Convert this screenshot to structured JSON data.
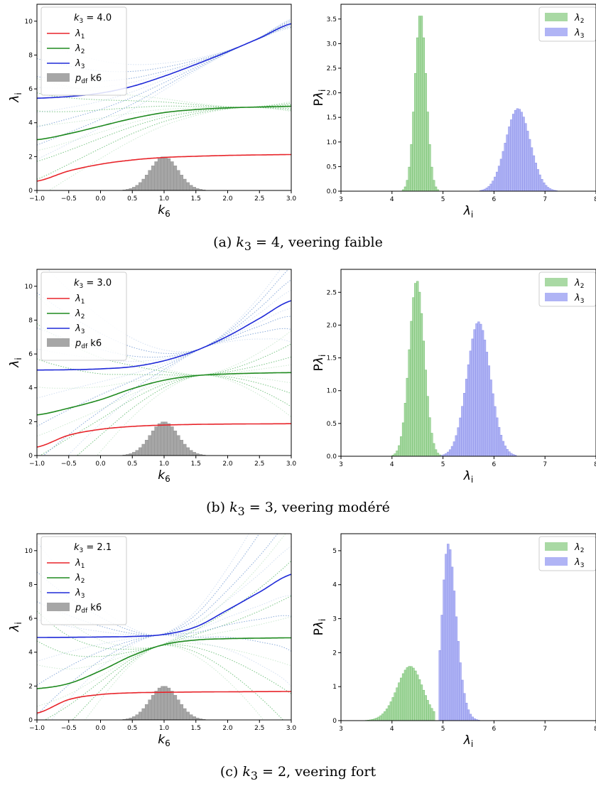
{
  "captions": [
    {
      "prefix": "(a) ",
      "math": "k",
      "sub": "3",
      "eq": " = 4",
      "rest": ", veering faible"
    },
    {
      "prefix": "(b) ",
      "math": "k",
      "sub": "3",
      "eq": " = 3",
      "rest": ", veering modéré"
    },
    {
      "prefix": "(c) ",
      "math": "k",
      "sub": "3",
      "eq": " = 2",
      "rest": ", veering fort"
    }
  ],
  "colors": {
    "lambda1": "#e8242a",
    "lambda2": "#1f8a1f",
    "lambda3": "#1f2ad8",
    "hist_green_fill": "#a9d9a4",
    "hist_green_edge": "#6fbf6a",
    "hist_blue_fill": "#b0b4f5",
    "hist_blue_edge": "#8a8fe8",
    "pdf_gray": "#a6a6a6",
    "samples_blue": "#7fa3d6",
    "samples_green": "#6cbf78"
  },
  "chart_data": [
    {
      "panel": "a-left",
      "type": "line",
      "xlabel": "k6",
      "ylabel": "λi",
      "xlim": [
        -1.0,
        3.0
      ],
      "ylim": [
        0,
        11
      ],
      "xticks": [
        "−1.0",
        "−0.5",
        "0.0",
        "0.5",
        "1.0",
        "1.5",
        "2.0",
        "2.5",
        "3.0"
      ],
      "yticks": [
        "0",
        "2",
        "4",
        "6",
        "8",
        "10"
      ],
      "legend_title": "k3 = 4.0",
      "legend": [
        "λ1",
        "λ2",
        "λ3",
        "pdf k6"
      ],
      "legend_position": "top-left",
      "series": [
        {
          "name": "λ1",
          "x": [
            -1.0,
            -0.5,
            0.0,
            0.5,
            1.0,
            1.5,
            2.0,
            2.5,
            3.0
          ],
          "values": [
            0.55,
            1.15,
            1.55,
            1.8,
            1.95,
            2.02,
            2.07,
            2.1,
            2.12
          ]
        },
        {
          "name": "λ2",
          "x": [
            -1.0,
            -0.5,
            0.0,
            0.5,
            1.0,
            1.5,
            2.0,
            2.5,
            3.0
          ],
          "values": [
            3.0,
            3.35,
            3.8,
            4.25,
            4.6,
            4.78,
            4.88,
            4.93,
            4.97
          ]
        },
        {
          "name": "λ3",
          "x": [
            -1.0,
            -0.5,
            0.0,
            0.5,
            1.0,
            1.5,
            2.0,
            2.5,
            3.0
          ],
          "values": [
            5.45,
            5.55,
            5.75,
            6.15,
            6.75,
            7.45,
            8.2,
            9.0,
            9.85
          ]
        }
      ],
      "pdf": {
        "center": 1.0,
        "sigma": 0.22,
        "peak": 2.0
      }
    },
    {
      "panel": "a-right",
      "type": "histogram",
      "xlabel": "λi",
      "ylabel": "Pλi",
      "xlim": [
        3,
        8
      ],
      "ylim": [
        0,
        3.8
      ],
      "xticks": [
        "3",
        "4",
        "5",
        "6",
        "7",
        "8"
      ],
      "yticks": [
        "0.0",
        "0.5",
        "1.0",
        "1.5",
        "2.0",
        "2.5",
        "3.0",
        "3.5"
      ],
      "legend": [
        "λ2",
        "λ3"
      ],
      "legend_position": "top-right",
      "series": [
        {
          "name": "λ2",
          "center": 4.56,
          "sigma": 0.11,
          "peak": 3.62,
          "skew": 0
        },
        {
          "name": "λ3",
          "center": 6.45,
          "sigma": 0.24,
          "peak": 1.68,
          "skew": 0.1
        }
      ]
    },
    {
      "panel": "b-left",
      "type": "line",
      "xlabel": "k6",
      "ylabel": "λi",
      "xlim": [
        -1.0,
        3.0
      ],
      "ylim": [
        0,
        11
      ],
      "xticks": [
        "−1.0",
        "−0.5",
        "0.0",
        "0.5",
        "1.0",
        "1.5",
        "2.0",
        "2.5",
        "3.0"
      ],
      "yticks": [
        "0",
        "2",
        "4",
        "6",
        "8",
        "10"
      ],
      "legend_title": "k3 = 3.0",
      "legend": [
        "λ1",
        "λ2",
        "λ3",
        "pdf k6"
      ],
      "legend_position": "top-left",
      "series": [
        {
          "name": "λ1",
          "x": [
            -1.0,
            -0.5,
            0.0,
            0.5,
            1.0,
            1.5,
            2.0,
            2.5,
            3.0
          ],
          "values": [
            0.5,
            1.2,
            1.55,
            1.72,
            1.8,
            1.84,
            1.86,
            1.87,
            1.88
          ]
        },
        {
          "name": "λ2",
          "x": [
            -1.0,
            -0.5,
            0.0,
            0.5,
            1.0,
            1.5,
            2.0,
            2.5,
            3.0
          ],
          "values": [
            2.4,
            2.8,
            3.3,
            3.95,
            4.45,
            4.72,
            4.82,
            4.87,
            4.9
          ]
        },
        {
          "name": "λ3",
          "x": [
            -1.0,
            -0.5,
            0.0,
            0.5,
            1.0,
            1.5,
            2.0,
            2.5,
            3.0
          ],
          "values": [
            5.05,
            5.07,
            5.12,
            5.25,
            5.6,
            6.2,
            7.05,
            8.1,
            9.15
          ]
        }
      ],
      "pdf": {
        "center": 1.0,
        "sigma": 0.22,
        "peak": 2.0
      }
    },
    {
      "panel": "b-right",
      "type": "histogram",
      "xlabel": "λi",
      "ylabel": "Pλi",
      "xlim": [
        3,
        8
      ],
      "ylim": [
        0,
        2.85
      ],
      "xticks": [
        "3",
        "4",
        "5",
        "6",
        "7",
        "8"
      ],
      "yticks": [
        "0.0",
        "0.5",
        "1.0",
        "1.5",
        "2.0",
        "2.5"
      ],
      "legend": [
        "λ2",
        "λ3"
      ],
      "legend_position": "top-right",
      "series": [
        {
          "name": "λ2",
          "center": 4.52,
          "sigma": 0.15,
          "peak": 2.68,
          "skew": -0.3
        },
        {
          "name": "λ3",
          "center": 5.6,
          "sigma": 0.25,
          "peak": 2.05,
          "skew": 0.6
        }
      ]
    },
    {
      "panel": "c-left",
      "type": "line",
      "xlabel": "k6",
      "ylabel": "λi",
      "xlim": [
        -1.0,
        3.0
      ],
      "ylim": [
        0,
        11
      ],
      "xticks": [
        "−1.0",
        "−0.5",
        "0.0",
        "0.5",
        "1.0",
        "1.5",
        "2.0",
        "2.5",
        "3.0"
      ],
      "yticks": [
        "0",
        "2",
        "4",
        "6",
        "8",
        "10"
      ],
      "legend_title": "k3 = 2.1",
      "legend": [
        "λ1",
        "λ2",
        "λ3",
        "pdf k6"
      ],
      "legend_position": "top-left",
      "series": [
        {
          "name": "λ1",
          "x": [
            -1.0,
            -0.5,
            0.0,
            0.5,
            1.0,
            1.5,
            2.0,
            2.5,
            3.0
          ],
          "values": [
            0.4,
            1.2,
            1.5,
            1.6,
            1.63,
            1.65,
            1.66,
            1.67,
            1.68
          ]
        },
        {
          "name": "λ2",
          "x": [
            -1.0,
            -0.5,
            0.0,
            0.5,
            1.0,
            1.5,
            2.0,
            2.5,
            3.0
          ],
          "values": [
            1.85,
            2.15,
            2.9,
            3.8,
            4.45,
            4.72,
            4.8,
            4.83,
            4.85
          ]
        },
        {
          "name": "λ3",
          "x": [
            -1.0,
            -0.5,
            0.0,
            0.5,
            1.0,
            1.5,
            2.0,
            2.5,
            3.0
          ],
          "values": [
            4.87,
            4.88,
            4.9,
            4.93,
            5.05,
            5.5,
            6.5,
            7.55,
            8.6
          ]
        }
      ],
      "pdf": {
        "center": 1.0,
        "sigma": 0.22,
        "peak": 2.0
      }
    },
    {
      "panel": "c-right",
      "type": "histogram",
      "xlabel": "λi",
      "ylabel": "Pλi",
      "xlim": [
        3,
        8
      ],
      "ylim": [
        0,
        5.5
      ],
      "xticks": [
        "3",
        "4",
        "5",
        "6",
        "7",
        "8"
      ],
      "yticks": [
        "0",
        "1",
        "2",
        "3",
        "4",
        "5"
      ],
      "legend": [
        "λ2",
        "λ3"
      ],
      "legend_position": "top-right",
      "series": [
        {
          "name": "λ2",
          "center": 4.5,
          "sigma": 0.3,
          "peak": 1.6,
          "skew": -0.9,
          "cutoff_high": 4.85
        },
        {
          "name": "λ3",
          "center": 5.0,
          "sigma": 0.2,
          "peak": 5.2,
          "skew": 1.8,
          "cutoff_low": 4.93
        }
      ]
    }
  ]
}
